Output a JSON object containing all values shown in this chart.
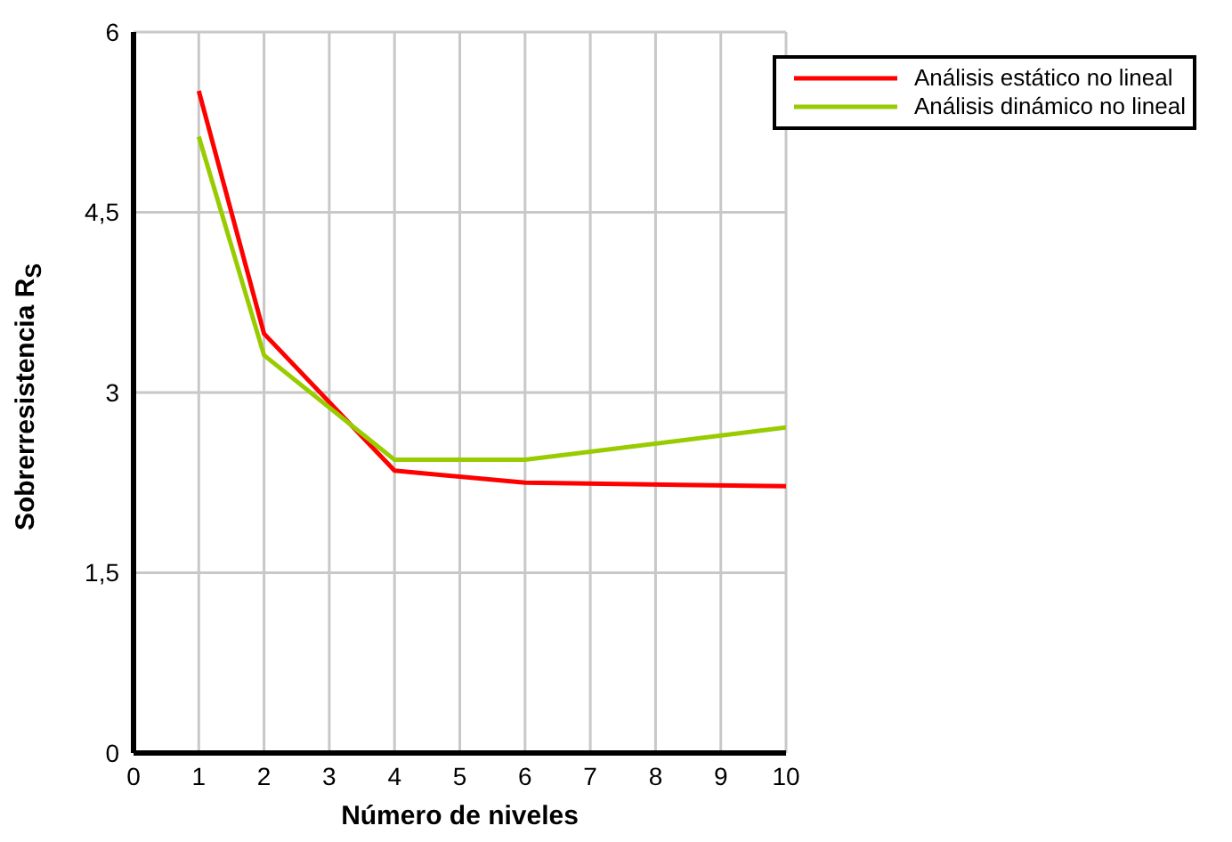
{
  "chart_data": {
    "type": "line",
    "xlabel": "Número de niveles",
    "ylabel": "Sobrerresistencia R$_{S}$",
    "x": [
      1,
      2,
      4,
      6,
      10
    ],
    "series": [
      {
        "name": "Análisis estático no lineal",
        "color": "#ff0000",
        "values": [
          5.51,
          3.49,
          2.35,
          2.25,
          2.22
        ]
      },
      {
        "name": "Análisis dinámico no lineal",
        "color": "#99cc00",
        "values": [
          5.13,
          3.31,
          2.44,
          2.44,
          2.71
        ]
      }
    ],
    "xlim": [
      0,
      10
    ],
    "xticks": [
      0,
      1,
      2,
      3,
      4,
      5,
      6,
      7,
      8,
      9,
      10
    ],
    "ylim": [
      0,
      6
    ],
    "yticks": [
      {
        "value": 0,
        "label": "0"
      },
      {
        "value": 1.5,
        "label": "1,5"
      },
      {
        "value": 3,
        "label": "3"
      },
      {
        "value": 4.5,
        "label": "4,5"
      },
      {
        "value": 6,
        "label": "6"
      }
    ],
    "grid": true,
    "legend": "top right",
    "marker": "none",
    "line_style": "solid"
  }
}
